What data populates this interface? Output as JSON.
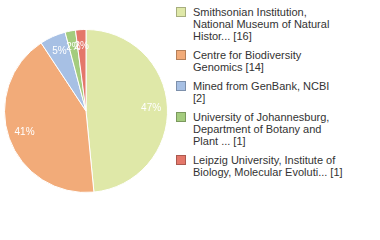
{
  "chart_data": {
    "type": "pie",
    "categories": [
      "Smithsonian Institution, National Museum of Natural Histor... [16]",
      "Centre for Biodiversity Genomics [14]",
      "Mined from GenBank, NCBI [2]",
      "University of Johannesburg, Department of Botany and Plant ... [1]",
      "Leipzig University, Institute of Biology, Molecular Evoluti... [1]"
    ],
    "values": [
      47,
      41,
      5,
      2,
      2
    ],
    "value_labels": [
      "47%",
      "41%",
      "5%",
      "2%",
      "2%"
    ],
    "colors": [
      "#dfe8a8",
      "#f2ab79",
      "#a7c0e4",
      "#a4cc7e",
      "#e4776a"
    ],
    "data_labels": true,
    "legend": "right"
  }
}
